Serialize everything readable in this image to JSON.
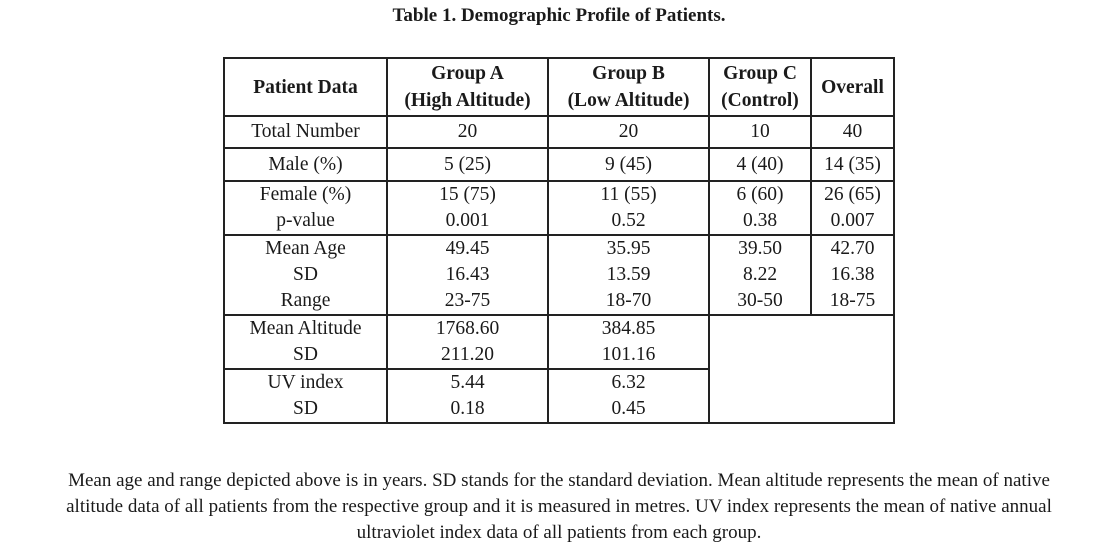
{
  "title": "Table 1. Demographic Profile of Patients.",
  "table": {
    "headers": {
      "patient_data": "Patient Data",
      "group_a_line1": "Group A",
      "group_a_line2": "(High Altitude)",
      "group_b_line1": "Group B",
      "group_b_line2": "(Low Altitude)",
      "group_c_line1": "Group C",
      "group_c_line2": "(Control)",
      "overall": "Overall"
    },
    "total_number": {
      "label": "Total Number",
      "a": "20",
      "b": "20",
      "c": "10",
      "overall": "40"
    },
    "male": {
      "label": "Male (%)",
      "a": "5 (25)",
      "b": "9 (45)",
      "c": "4 (40)",
      "overall": "14 (35)"
    },
    "female": {
      "label1": "Female (%)",
      "label2": "p-value",
      "a1": "15 (75)",
      "a2": "0.001",
      "b1": "11 (55)",
      "b2": "0.52",
      "c1": "6 (60)",
      "c2": "0.38",
      "o1": "26 (65)",
      "o2": "0.007"
    },
    "age": {
      "label1": "Mean Age",
      "label2": "SD",
      "label3": "Range",
      "a1": "49.45",
      "a2": "16.43",
      "a3": "23-75",
      "b1": "35.95",
      "b2": "13.59",
      "b3": "18-70",
      "c1": "39.50",
      "c2": "8.22",
      "c3": "30-50",
      "o1": "42.70",
      "o2": "16.38",
      "o3": "18-75"
    },
    "altitude": {
      "label1": "Mean Altitude",
      "label2": "SD",
      "a1": "1768.60",
      "a2": "211.20",
      "b1": "384.85",
      "b2": "101.16"
    },
    "uv": {
      "label1": "UV index",
      "label2": "SD",
      "a1": "5.44",
      "a2": "0.18",
      "b1": "6.32",
      "b2": "0.45"
    }
  },
  "footnote": {
    "line1": "Mean age and range depicted above is in years. SD stands for the standard deviation. Mean altitude represents the mean of native",
    "line2": "altitude data of all patients from the respective group and it is measured in metres. UV index represents the mean of native annual",
    "line3": "ultraviolet index data of all patients from each group."
  }
}
